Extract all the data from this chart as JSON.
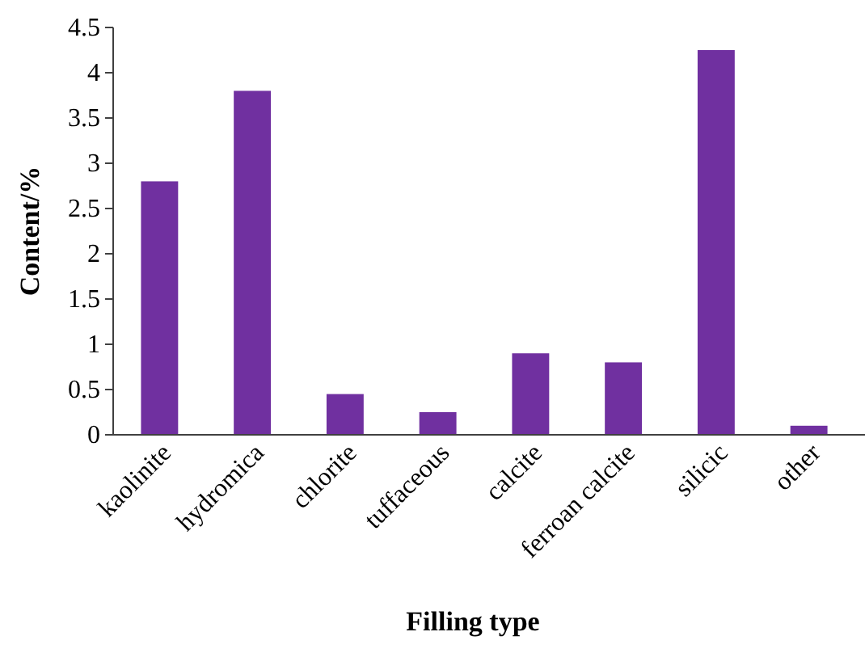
{
  "chart_data": {
    "type": "bar",
    "xlabel": "Filling type",
    "ylabel": "Content/%",
    "categories": [
      "kaolinite",
      "hydromica",
      "chlorite",
      "tuffaceous",
      "calcite",
      "ferroan calcite",
      "silicic",
      "other"
    ],
    "values": [
      2.8,
      3.8,
      0.45,
      0.25,
      0.9,
      0.8,
      4.25,
      0.1
    ],
    "color": "#7030a0",
    "ylim": [
      0,
      4.5
    ],
    "yticks": [
      0,
      0.5,
      1,
      1.5,
      2,
      2.5,
      3,
      3.5,
      4,
      4.5
    ],
    "grid": false
  }
}
